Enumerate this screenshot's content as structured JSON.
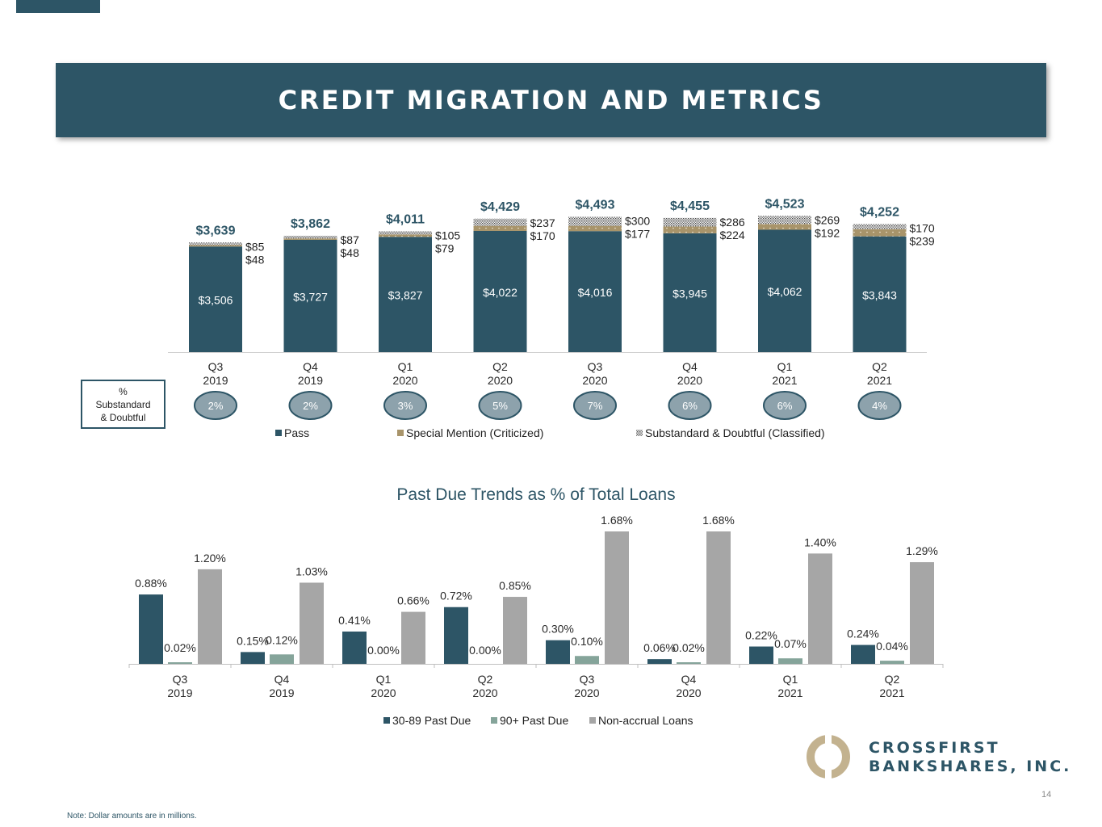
{
  "header": {
    "title": "CREDIT MIGRATION AND METRICS"
  },
  "colors": {
    "navy": "#2d5566",
    "gold": "#a8946a",
    "gray": "#a6a6a6",
    "teal_gray": "#85a49a",
    "oval": "#8da2ac",
    "label_blue": "#2d5566"
  },
  "pct_box": {
    "line1": "%",
    "line2": "Substandard",
    "line3": "& Doubtful"
  },
  "chart_data": [
    {
      "type": "bar",
      "stacked": true,
      "categories": [
        [
          "Q3",
          "2019"
        ],
        [
          "Q4",
          "2019"
        ],
        [
          "Q1",
          "2020"
        ],
        [
          "Q2",
          "2020"
        ],
        [
          "Q3",
          "2020"
        ],
        [
          "Q4",
          "2020"
        ],
        [
          "Q1",
          "2021"
        ],
        [
          "Q2",
          "2021"
        ]
      ],
      "series": [
        {
          "name": "Pass",
          "values": [
            3506,
            3727,
            3827,
            4022,
            4016,
            3945,
            4062,
            3843
          ],
          "labels": [
            "$3,506",
            "$3,727",
            "$3,827",
            "$4,022",
            "$4,016",
            "$3,945",
            "$4,062",
            "$3,843"
          ]
        },
        {
          "name": "Special Mention (Criticized)",
          "values": [
            48,
            48,
            79,
            170,
            177,
            224,
            192,
            239
          ],
          "labels": [
            "$48",
            "$48",
            "$79",
            "$170",
            "$177",
            "$224",
            "$192",
            "$239"
          ]
        },
        {
          "name": "Substandard & Doubtful (Classified)",
          "values": [
            85,
            87,
            105,
            237,
            300,
            286,
            269,
            170
          ],
          "labels": [
            "$85",
            "$87",
            "$105",
            "$237",
            "$300",
            "$286",
            "$269",
            "$170"
          ]
        }
      ],
      "totals": [
        "$3,639",
        "$3,862",
        "$4,011",
        "$4,429",
        "$4,493",
        "$4,455",
        "$4,523",
        "$4,252"
      ],
      "substandard_pct": [
        "2%",
        "2%",
        "3%",
        "5%",
        "7%",
        "6%",
        "6%",
        "4%"
      ],
      "legend": [
        "Pass",
        "Special Mention (Criticized)",
        "Substandard & Doubtful (Classified)"
      ],
      "legend_position": "bottom"
    },
    {
      "type": "bar",
      "title": "Past Due Trends as % of Total Loans",
      "categories": [
        [
          "Q3",
          "2019"
        ],
        [
          "Q4",
          "2019"
        ],
        [
          "Q1",
          "2020"
        ],
        [
          "Q2",
          "2020"
        ],
        [
          "Q3",
          "2020"
        ],
        [
          "Q4",
          "2020"
        ],
        [
          "Q1",
          "2021"
        ],
        [
          "Q2",
          "2021"
        ]
      ],
      "series": [
        {
          "name": "30-89 Past Due",
          "values": [
            0.88,
            0.15,
            0.41,
            0.72,
            0.3,
            0.06,
            0.22,
            0.24
          ],
          "labels": [
            "0.88%",
            "0.15%",
            "0.41%",
            "0.72%",
            "0.30%",
            "0.06%",
            "0.22%",
            "0.24%"
          ]
        },
        {
          "name": "90+ Past Due",
          "values": [
            0.02,
            0.12,
            0.0,
            0.0,
            0.1,
            0.02,
            0.07,
            0.04
          ],
          "labels": [
            "0.02%",
            "0.12%",
            "0.00%",
            "0.00%",
            "0.10%",
            "0.02%",
            "0.07%",
            "0.04%"
          ]
        },
        {
          "name": "Non-accrual Loans",
          "values": [
            1.2,
            1.03,
            0.66,
            0.85,
            1.68,
            1.68,
            1.4,
            1.29
          ],
          "labels": [
            "1.20%",
            "1.03%",
            "0.66%",
            "0.85%",
            "1.68%",
            "1.68%",
            "1.40%",
            "1.29%"
          ]
        }
      ],
      "legend": [
        "30-89 Past Due",
        "90+ Past Due",
        "Non-accrual Loans"
      ],
      "legend_position": "bottom"
    }
  ],
  "logo": {
    "line1": "CROSSFIRST",
    "line2": "BANKSHARES, INC."
  },
  "footer": {
    "page_number": "14",
    "note": "Note: Dollar amounts are in millions."
  }
}
